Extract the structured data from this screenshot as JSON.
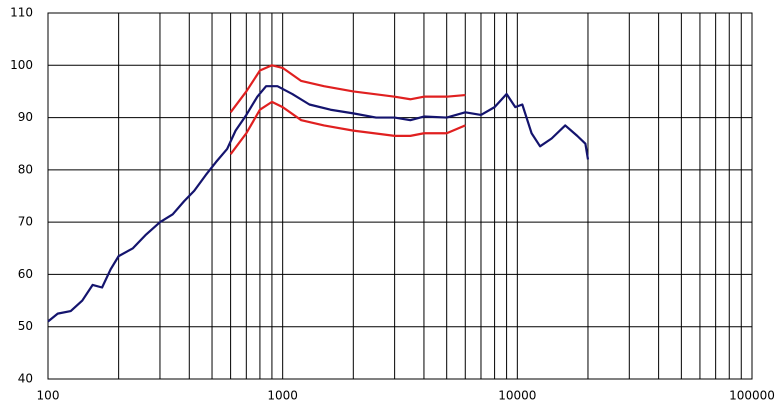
{
  "chart_data": {
    "type": "line",
    "xlim": [
      100,
      100000
    ],
    "xticks": [
      100,
      1000,
      10000,
      100000
    ],
    "xscale": "log",
    "ylim": [
      40,
      110
    ],
    "yticks": [
      40,
      50,
      60,
      70,
      80,
      90,
      100,
      110
    ],
    "grid": true,
    "minor_grid": true,
    "series": [
      {
        "color": "#14146e",
        "x": [
          100,
          110,
          125,
          140,
          155,
          170,
          185,
          200,
          230,
          260,
          300,
          340,
          380,
          420,
          470,
          520,
          580,
          630,
          700,
          780,
          850,
          950,
          1100,
          1300,
          1600,
          2000,
          2500,
          3000,
          3500,
          4000,
          5000,
          6000,
          7000,
          8000,
          9000,
          9800,
          10500,
          11500,
          12500,
          14000,
          16000,
          18000,
          19500,
          20000
        ],
        "values": [
          51,
          52.5,
          53,
          55,
          58,
          57.5,
          61,
          63.5,
          65,
          67.5,
          70,
          71.5,
          74,
          76,
          79,
          81.5,
          84,
          87.5,
          90.5,
          94,
          96,
          96,
          94.5,
          92.5,
          91.5,
          90.8,
          90,
          90,
          89.5,
          90.2,
          90,
          91,
          90.5,
          92,
          94.5,
          92,
          92.5,
          87,
          84.5,
          86,
          88.5,
          86.5,
          85,
          82
        ]
      },
      {
        "color": "#e02020",
        "x": [
          600,
          700,
          800,
          900,
          1000,
          1200,
          1500,
          2000,
          3000,
          3500,
          4000,
          5000,
          6000
        ],
        "values": [
          91,
          95,
          99,
          100,
          99.5,
          97,
          96,
          95,
          94,
          93.5,
          94,
          94,
          94.3
        ]
      },
      {
        "color": "#e02020",
        "x": [
          600,
          700,
          800,
          900,
          1000,
          1200,
          1500,
          2000,
          3000,
          3500,
          4000,
          5000,
          6000
        ],
        "values": [
          83,
          87,
          91.5,
          93,
          92,
          89.5,
          88.5,
          87.5,
          86.5,
          86.5,
          87,
          87,
          88.5
        ]
      }
    ]
  }
}
